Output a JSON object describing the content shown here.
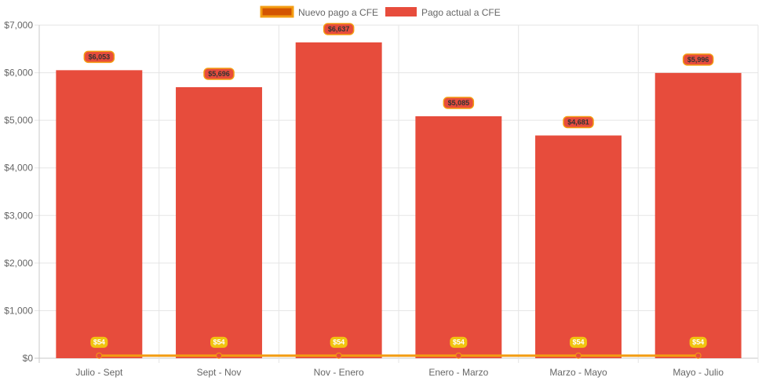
{
  "chart_data": {
    "type": "bar",
    "categories": [
      "Julio - Sept",
      "Sept - Nov",
      "Nov - Enero",
      "Enero - Marzo",
      "Marzo - Mayo",
      "Mayo - Julio"
    ],
    "series": [
      {
        "name": "Nuevo pago a CFE",
        "type": "line",
        "values": [
          54,
          54,
          54,
          54,
          54,
          54
        ],
        "labels": [
          "$54",
          "$54",
          "$54",
          "$54",
          "$54",
          "$54"
        ],
        "color": "#f39c12",
        "legend_fill": "#d35400",
        "point_color": "#e74c3c",
        "label_bg": "#f1c40f",
        "label_text_color": "#ffffff"
      },
      {
        "name": "Pago actual a CFE",
        "type": "bar",
        "values": [
          6053,
          5696,
          6637,
          5085,
          4681,
          5996
        ],
        "labels": [
          "$6,053",
          "$5,696",
          "$6,637",
          "$5,085",
          "$4,681",
          "$5,996"
        ],
        "color": "#e74c3c",
        "label_bg": "#e74c3c",
        "label_border": "#f39c12",
        "label_text_color": "#333333"
      }
    ],
    "ylim": [
      0,
      7000
    ],
    "yticks": [
      0,
      1000,
      2000,
      3000,
      4000,
      5000,
      6000,
      7000
    ],
    "ytick_labels": [
      "$0",
      "$1,000",
      "$2,000",
      "$3,000",
      "$4,000",
      "$5,000",
      "$6,000",
      "$7,000"
    ],
    "grid": true,
    "legend_position": "top-center",
    "colors": {
      "grid": "#e5e5e5",
      "axis": "#c8c8c8",
      "text": "#666666"
    }
  }
}
